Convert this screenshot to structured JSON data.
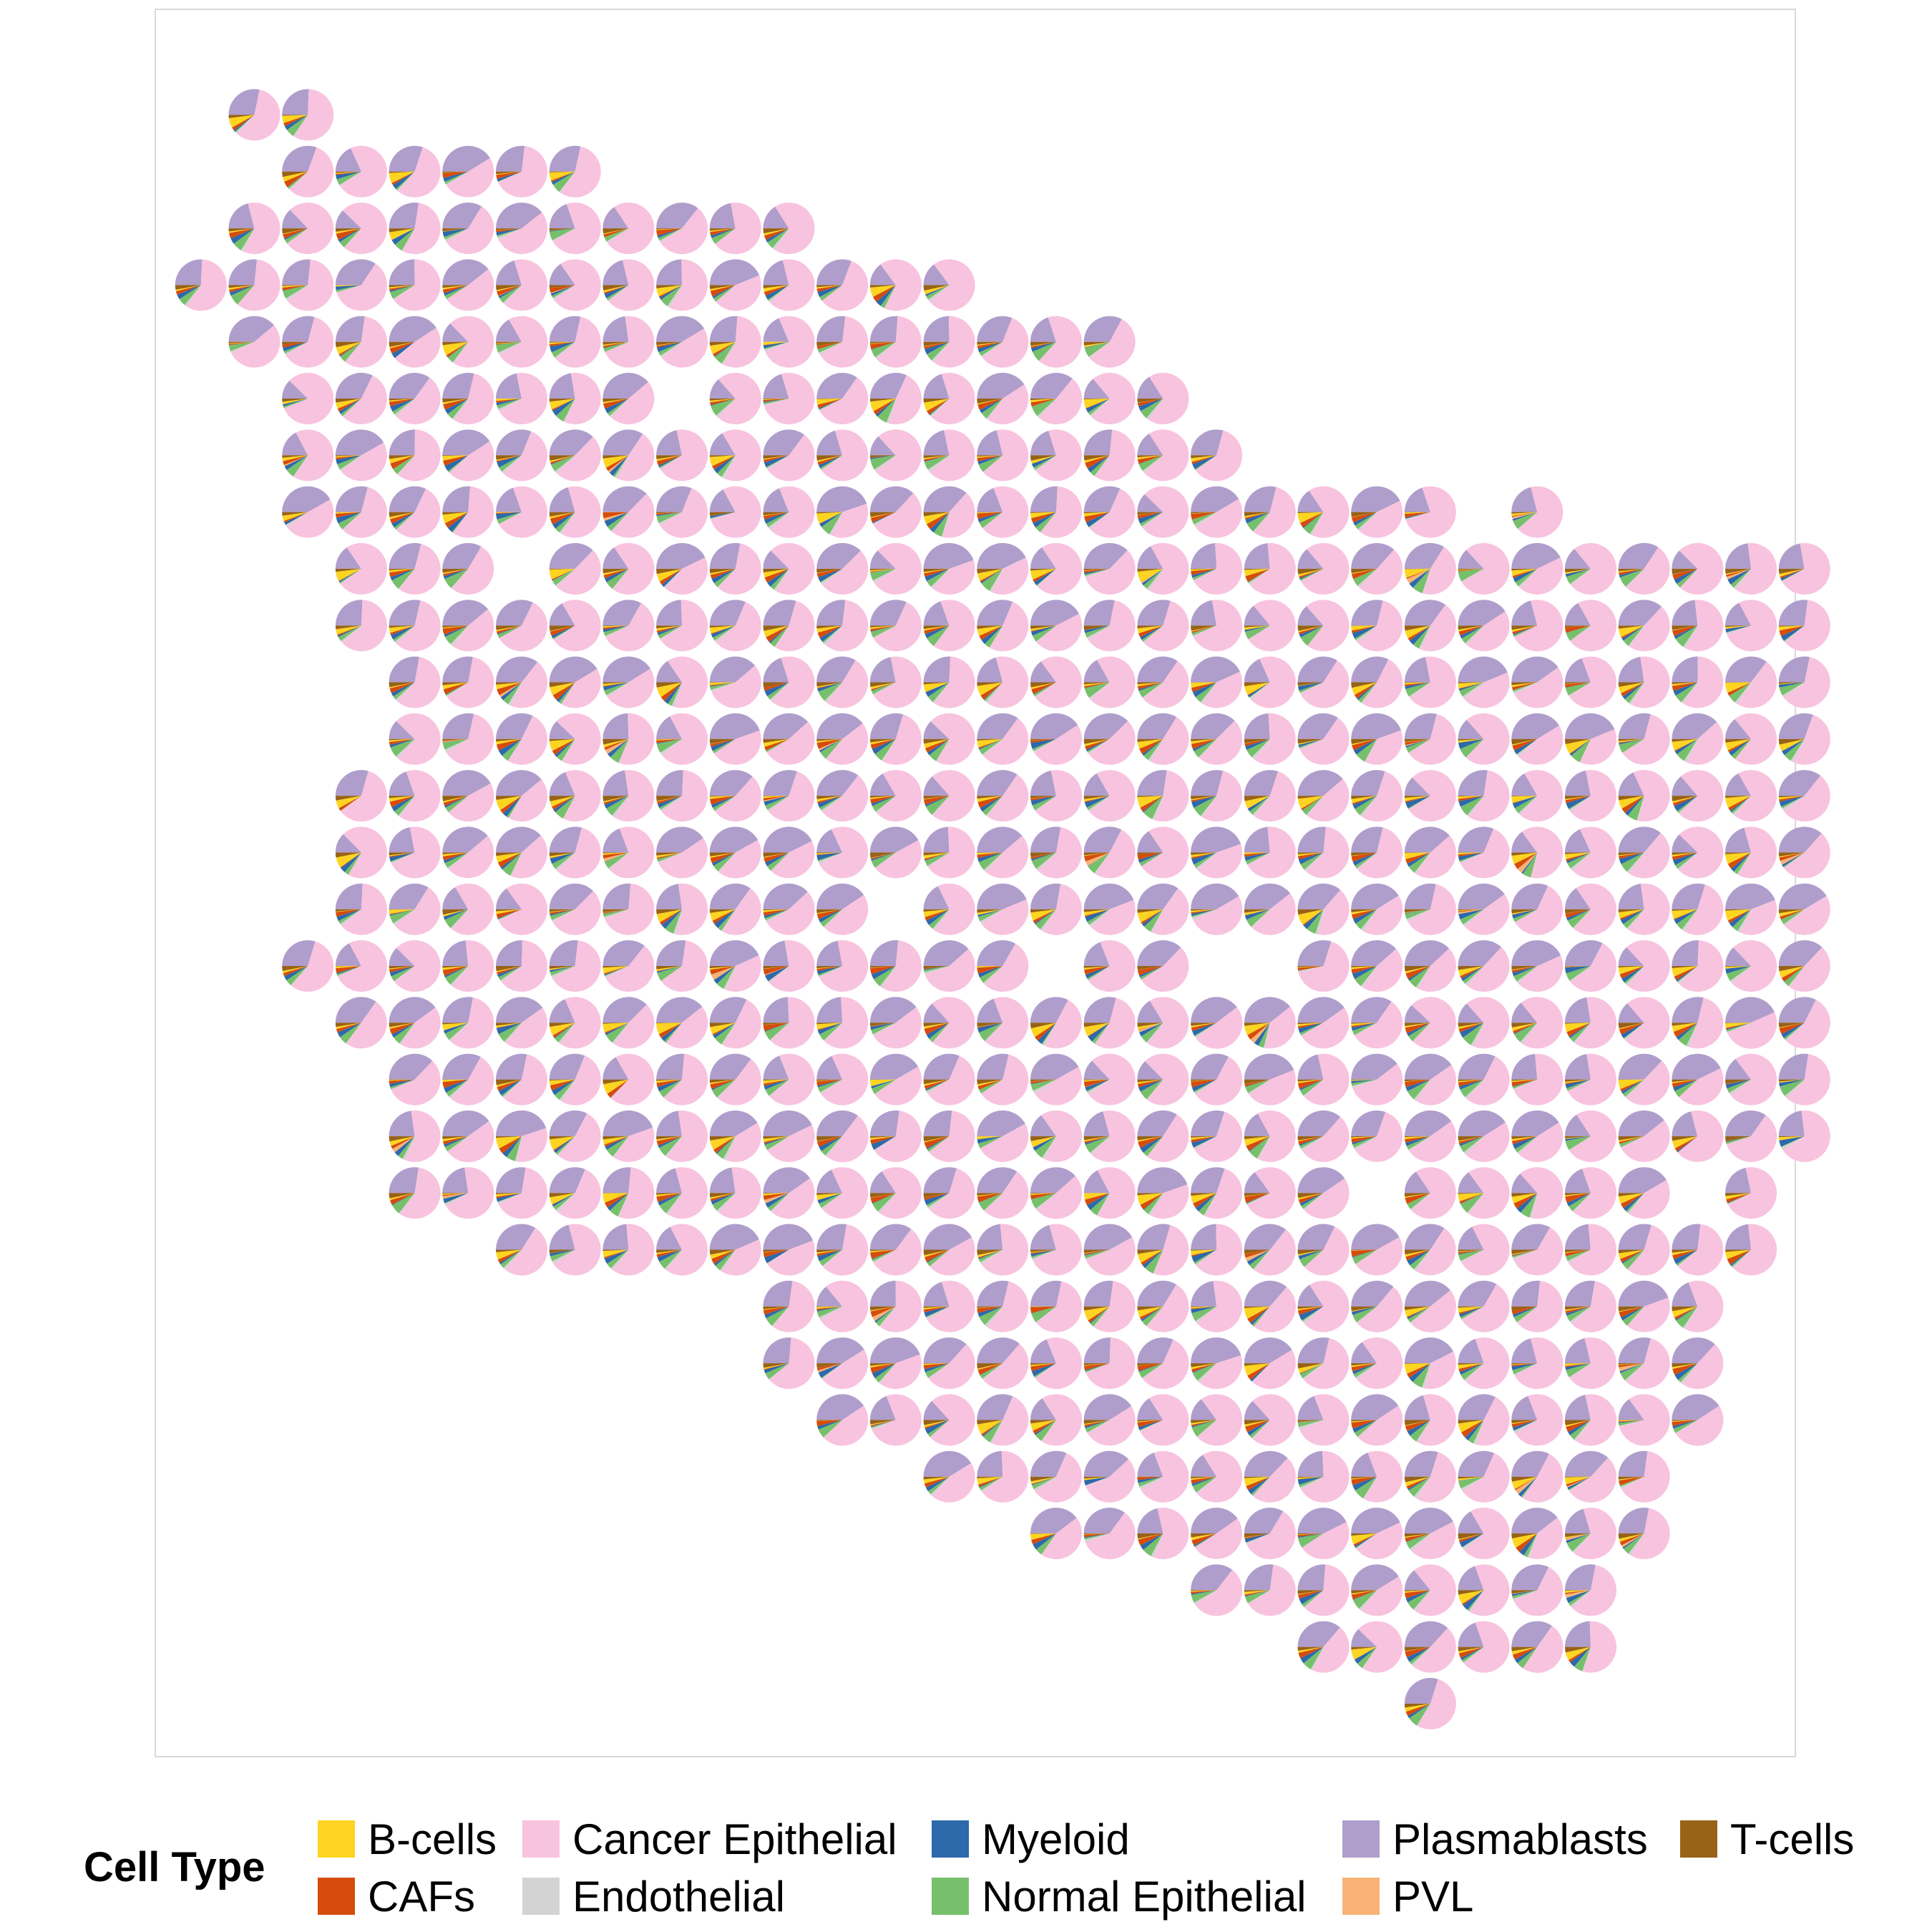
{
  "chart_data": {
    "type": "scatter",
    "subtype": "spatial scatter pie",
    "title": "",
    "xlabel": "",
    "ylabel": "",
    "grid": false,
    "legend_placement": "bottom",
    "legend": {
      "title": "Cell Type",
      "entries": [
        {
          "name": "B-cells",
          "color": "#FDD421"
        },
        {
          "name": "CAFs",
          "color": "#D64C0A"
        },
        {
          "name": "Cancer Epithelial",
          "color": "#F8C3DF"
        },
        {
          "name": "Endothelial",
          "color": "#D3D3D3"
        },
        {
          "name": "Myeloid",
          "color": "#2D69AB"
        },
        {
          "name": "Normal Epithelial",
          "color": "#76C06C"
        },
        {
          "name": "Plasmablasts",
          "color": "#AF9ECB"
        },
        {
          "name": "PVL",
          "color": "#F8B276"
        },
        {
          "name": "T-cells",
          "color": "#986217"
        }
      ]
    },
    "spot_rows": [
      {
        "y": 1,
        "x": [
          2,
          3
        ]
      },
      {
        "y": 2,
        "x": [
          3,
          4,
          5,
          6,
          7,
          8
        ]
      },
      {
        "y": 3,
        "x": [
          2,
          3,
          4,
          5,
          6,
          7,
          8,
          9,
          10,
          11,
          12
        ]
      },
      {
        "y": 4,
        "x": [
          1,
          2,
          3,
          4,
          5,
          6,
          7,
          8,
          9,
          10,
          11,
          12,
          13,
          14,
          15
        ]
      },
      {
        "y": 5,
        "x": [
          2,
          3,
          4,
          5,
          6,
          7,
          8,
          9,
          10,
          11,
          12,
          13,
          14,
          15,
          16,
          17,
          18
        ]
      },
      {
        "y": 6,
        "x": [
          3,
          4,
          5,
          6,
          7,
          8,
          9,
          11,
          12,
          13,
          14,
          15,
          16,
          17,
          18,
          19
        ]
      },
      {
        "y": 7,
        "x": [
          3,
          4,
          5,
          6,
          7,
          8,
          9,
          10,
          11,
          12,
          13,
          14,
          15,
          16,
          17,
          18,
          19,
          20
        ]
      },
      {
        "y": 8,
        "x": [
          3,
          4,
          5,
          6,
          7,
          8,
          9,
          10,
          11,
          12,
          13,
          14,
          15,
          16,
          17,
          18,
          19,
          20,
          21,
          22,
          23,
          24,
          26
        ]
      },
      {
        "y": 9,
        "x": [
          4,
          5,
          6,
          8,
          9,
          10,
          11,
          12,
          13,
          14,
          15,
          16,
          17,
          18,
          19,
          20,
          21,
          22,
          23,
          24,
          25,
          26,
          27,
          28,
          29,
          30,
          31
        ]
      },
      {
        "y": 10,
        "x": [
          4,
          5,
          6,
          7,
          8,
          9,
          10,
          11,
          12,
          13,
          14,
          15,
          16,
          17,
          18,
          19,
          20,
          21,
          22,
          23,
          24,
          25,
          26,
          27,
          28,
          29,
          30,
          31
        ]
      },
      {
        "y": 11,
        "x": [
          5,
          6,
          7,
          8,
          9,
          10,
          11,
          12,
          13,
          14,
          15,
          16,
          17,
          18,
          19,
          20,
          21,
          22,
          23,
          24,
          25,
          26,
          27,
          28,
          29,
          30,
          31
        ]
      },
      {
        "y": 12,
        "x": [
          5,
          6,
          7,
          8,
          9,
          10,
          11,
          12,
          13,
          14,
          15,
          16,
          17,
          18,
          19,
          20,
          21,
          22,
          23,
          24,
          25,
          26,
          27,
          28,
          29,
          30,
          31
        ]
      },
      {
        "y": 13,
        "x": [
          4,
          5,
          6,
          7,
          8,
          9,
          10,
          11,
          12,
          13,
          14,
          15,
          16,
          17,
          18,
          19,
          20,
          21,
          22,
          23,
          24,
          25,
          26,
          27,
          28,
          29,
          30,
          31
        ]
      },
      {
        "y": 14,
        "x": [
          4,
          5,
          6,
          7,
          8,
          9,
          10,
          11,
          12,
          13,
          14,
          15,
          16,
          17,
          18,
          19,
          20,
          21,
          22,
          23,
          24,
          25,
          26,
          27,
          28,
          29,
          30,
          31
        ]
      },
      {
        "y": 15,
        "x": [
          4,
          5,
          6,
          7,
          8,
          9,
          10,
          11,
          12,
          13,
          15,
          16,
          17,
          18,
          19,
          20,
          21,
          22,
          23,
          24,
          25,
          26,
          27,
          28,
          29,
          30,
          31
        ]
      },
      {
        "y": 16,
        "x": [
          3,
          4,
          5,
          6,
          7,
          8,
          9,
          10,
          11,
          12,
          13,
          14,
          15,
          16,
          18,
          19,
          22,
          23,
          24,
          25,
          26,
          27,
          28,
          29,
          30,
          31
        ]
      },
      {
        "y": 17,
        "x": [
          4,
          5,
          6,
          7,
          8,
          9,
          10,
          11,
          12,
          13,
          14,
          15,
          16,
          17,
          18,
          19,
          20,
          21,
          22,
          23,
          24,
          25,
          26,
          27,
          28,
          29,
          30,
          31
        ]
      },
      {
        "y": 18,
        "x": [
          5,
          6,
          7,
          8,
          9,
          10,
          11,
          12,
          13,
          14,
          15,
          16,
          17,
          18,
          19,
          20,
          21,
          22,
          23,
          24,
          25,
          26,
          27,
          28,
          29,
          30,
          31
        ]
      },
      {
        "y": 19,
        "x": [
          5,
          6,
          7,
          8,
          9,
          10,
          11,
          12,
          13,
          14,
          15,
          16,
          17,
          18,
          19,
          20,
          21,
          22,
          23,
          24,
          25,
          26,
          27,
          28,
          29,
          30,
          31
        ]
      },
      {
        "y": 20,
        "x": [
          5,
          6,
          7,
          8,
          9,
          10,
          11,
          12,
          13,
          14,
          15,
          16,
          17,
          18,
          19,
          20,
          21,
          22,
          24,
          25,
          26,
          27,
          28,
          30
        ]
      },
      {
        "y": 21,
        "x": [
          7,
          8,
          9,
          10,
          11,
          12,
          13,
          14,
          15,
          16,
          17,
          18,
          19,
          20,
          21,
          22,
          23,
          24,
          25,
          26,
          27,
          28,
          29,
          30
        ]
      },
      {
        "y": 22,
        "x": [
          12,
          13,
          14,
          15,
          16,
          17,
          18,
          19,
          20,
          21,
          22,
          23,
          24,
          25,
          26,
          27,
          28,
          29
        ]
      },
      {
        "y": 23,
        "x": [
          12,
          13,
          14,
          15,
          16,
          17,
          18,
          19,
          20,
          21,
          22,
          23,
          24,
          25,
          26,
          27,
          28,
          29
        ]
      },
      {
        "y": 24,
        "x": [
          13,
          14,
          15,
          16,
          17,
          18,
          19,
          20,
          21,
          22,
          23,
          24,
          25,
          26,
          27,
          28,
          29
        ]
      },
      {
        "y": 25,
        "x": [
          15,
          16,
          17,
          18,
          19,
          20,
          21,
          22,
          23,
          24,
          25,
          26,
          27,
          28
        ]
      },
      {
        "y": 26,
        "x": [
          17,
          18,
          19,
          20,
          21,
          22,
          23,
          24,
          25,
          26,
          27,
          28
        ]
      },
      {
        "y": 27,
        "x": [
          20,
          21,
          22,
          23,
          24,
          25,
          26,
          27
        ]
      },
      {
        "y": 28,
        "x": [
          22,
          23,
          24,
          25,
          26,
          27
        ]
      },
      {
        "y": 29,
        "x": [
          24
        ]
      }
    ],
    "typical_spot_composition": {
      "Cancer Epithelial": 0.6,
      "Plasmablasts": 0.25,
      "Normal Epithelial": 0.05,
      "Myeloid": 0.02,
      "Endothelial": 0.01,
      "B-cells": 0.03,
      "CAFs": 0.02,
      "T-cells": 0.02,
      "PVL": 0.0
    }
  }
}
